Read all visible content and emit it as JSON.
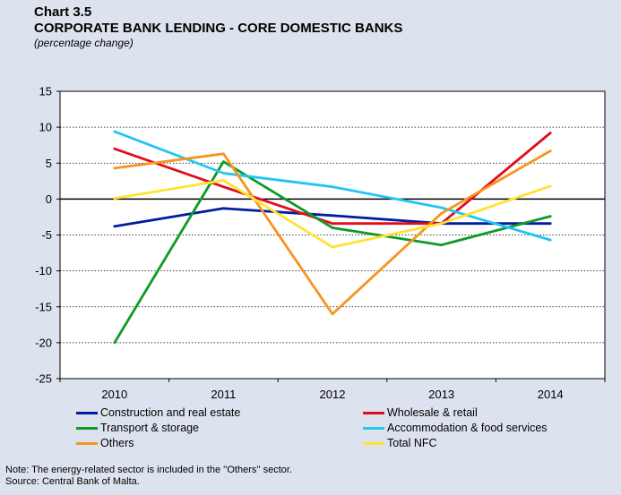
{
  "header": {
    "chart_number": "Chart 3.5",
    "title": "CORPORATE  BANK LENDING - CORE DOMESTIC BANKS",
    "subtitle": "(percentage change)"
  },
  "notes": {
    "note": "Note: The energy-related sector is included in the ''Others'' sector.",
    "source": "Source: Central Bank of Malta."
  },
  "chart_data": {
    "type": "line",
    "title": "CORPORATE  BANK LENDING - CORE DOMESTIC BANKS",
    "subtitle": "(percentage change)",
    "x": [
      "2010",
      "2011",
      "2012",
      "2013",
      "2014"
    ],
    "ylim": [
      -25,
      15
    ],
    "yticks": [
      15,
      10,
      5,
      0,
      -5,
      -10,
      -15,
      -20,
      -25
    ],
    "grid": "horizontal dotted",
    "legend_position": "bottom",
    "series": [
      {
        "name": "Construction and real estate",
        "color": "#001ca0",
        "values": [
          -3.8,
          -1.3,
          -2.3,
          -3.4,
          -3.4
        ]
      },
      {
        "name": "Wholesale & retail",
        "color": "#e10d1d",
        "values": [
          7.0,
          1.7,
          -3.4,
          -3.4,
          9.2
        ]
      },
      {
        "name": "Transport & storage",
        "color": "#0f9a27",
        "values": [
          -20.0,
          5.2,
          -4.0,
          -6.4,
          -2.4
        ]
      },
      {
        "name": "Accommodation & food services",
        "color": "#22c4f2",
        "values": [
          9.4,
          3.6,
          1.7,
          -1.2,
          -5.7
        ]
      },
      {
        "name": "Others",
        "color": "#f7941d",
        "values": [
          4.3,
          6.3,
          -16.0,
          -2.0,
          6.7
        ]
      },
      {
        "name": "Total NFC",
        "color": "#ffe234",
        "values": [
          0.1,
          2.6,
          -6.7,
          -3.4,
          1.8
        ]
      }
    ]
  }
}
